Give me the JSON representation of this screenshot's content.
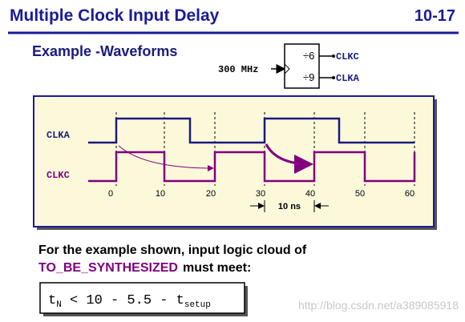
{
  "header": {
    "title": "Multiple Clock Input Delay",
    "page": "10-17"
  },
  "subtitle": "Example -Waveforms",
  "block": {
    "input": "300 MHz",
    "dividers": [
      "÷6",
      "÷9"
    ],
    "outputs": [
      "CLKC",
      "CLKA"
    ]
  },
  "waveform": {
    "signals": [
      "CLKA",
      "CLKC"
    ],
    "time_labels": [
      "0",
      "10",
      "20",
      "30",
      "40",
      "50",
      "60"
    ],
    "interval": "10 ns"
  },
  "body": {
    "line1": "For the example shown, input logic cloud of",
    "keyword": "TO_BE_SYNTHESIZED",
    "line2": "must meet:"
  },
  "formula": {
    "parts": [
      "t",
      "N",
      " < 10 - 5.5 - t",
      "setup"
    ]
  },
  "watermark": "http://blog.csdn.net/a389085918"
}
